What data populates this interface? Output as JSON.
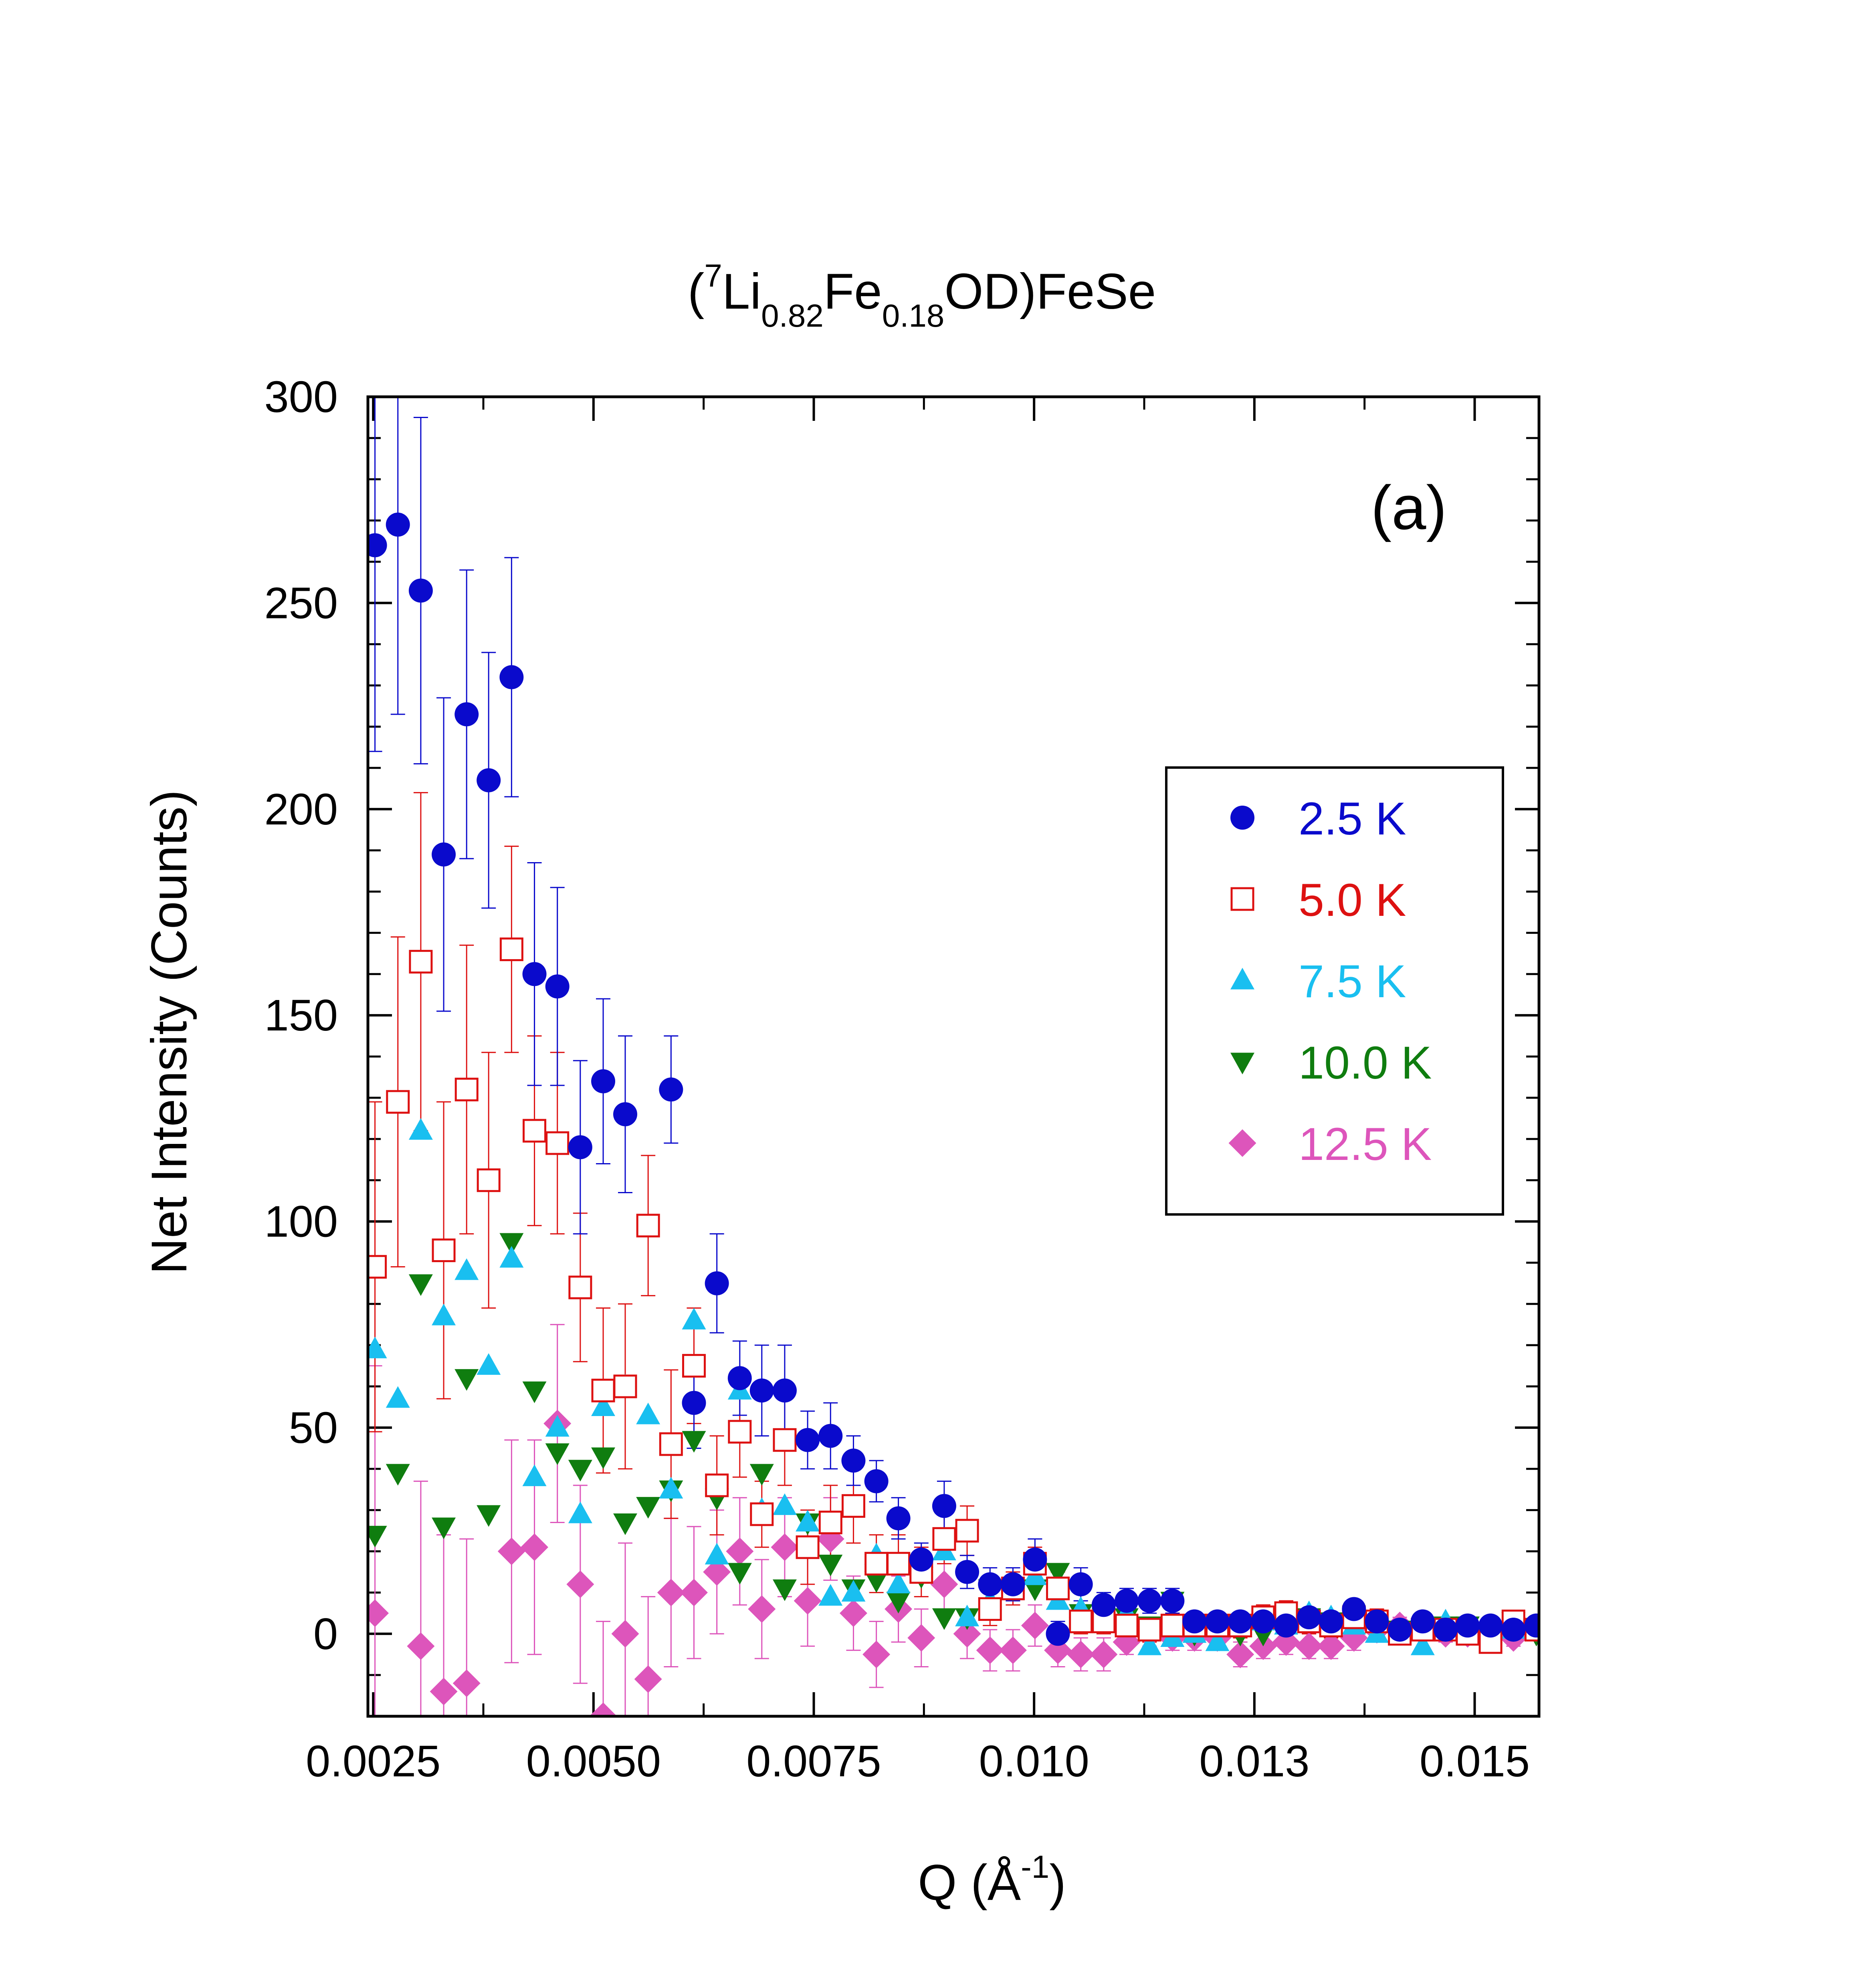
{
  "chart_data": {
    "type": "scatter",
    "title_parts": [
      "(",
      "7",
      "Li",
      "0.82",
      "Fe",
      "0.18",
      "OD)FeSe"
    ],
    "panel_label": "(a)",
    "xlabel_parts": [
      "Q (Å",
      "-1",
      ")"
    ],
    "ylabel": "Net Intensity (Counts)",
    "xlim": [
      0.00244,
      0.01573
    ],
    "ylim": [
      -20,
      300
    ],
    "xticks": [
      0.0025,
      0.005,
      0.0075,
      0.01,
      0.0125,
      0.015
    ],
    "xtick_labels": [
      "0.0025",
      "0.0050",
      "0.0075",
      "0.010",
      "0.013",
      "0.015"
    ],
    "yticks": [
      0,
      50,
      100,
      150,
      200,
      250,
      300
    ],
    "ytick_labels": [
      "0",
      "50",
      "100",
      "150",
      "200",
      "250",
      "300"
    ],
    "legend_position": "right",
    "colors": {
      "2.5 K": "#0a0acc",
      "5.0 K": "#dd1111",
      "7.5 K": "#19bff0",
      "10.0 K": "#0f7d0f",
      "12.5 K": "#dd55bb"
    },
    "x": [
      0.00252,
      0.00278,
      0.00304,
      0.0033,
      0.00356,
      0.00381,
      0.00407,
      0.00433,
      0.00459,
      0.00485,
      0.00511,
      0.00536,
      0.00562,
      0.00588,
      0.00614,
      0.0064,
      0.00666,
      0.00691,
      0.00717,
      0.00743,
      0.00769,
      0.00795,
      0.00821,
      0.00846,
      0.00872,
      0.00898,
      0.00924,
      0.0095,
      0.00976,
      0.01001,
      0.01027,
      0.01053,
      0.01079,
      0.01105,
      0.01131,
      0.01157,
      0.01182,
      0.01208,
      0.01234,
      0.0126,
      0.01286,
      0.01312,
      0.01337,
      0.01363,
      0.01389,
      0.01415,
      0.01441,
      0.01467,
      0.01492,
      0.01518,
      0.01544,
      0.0157
    ],
    "series": [
      {
        "name": "2.5 K",
        "marker": "circle",
        "values": [
          264,
          269,
          253,
          189,
          223,
          207,
          232,
          160,
          157,
          118,
          134,
          126,
          null,
          132,
          56,
          85,
          62,
          59,
          59,
          47,
          48,
          42,
          37,
          28,
          18,
          31,
          15,
          12,
          12,
          18,
          0,
          12,
          7,
          8,
          8,
          8,
          3,
          3,
          3,
          3,
          2,
          4,
          3,
          6,
          3,
          1,
          3,
          1,
          2,
          2,
          1,
          2
        ],
        "errors": [
          50,
          46,
          42,
          38,
          35,
          31,
          29,
          27,
          24,
          21,
          20,
          19,
          null,
          13,
          11,
          12,
          9,
          11,
          11,
          7,
          8,
          6,
          5,
          5,
          4,
          6,
          4,
          4,
          4,
          5,
          3,
          4,
          3,
          3,
          3,
          3,
          2,
          2,
          2,
          2,
          2,
          2,
          2,
          2,
          2,
          2,
          2,
          2,
          2,
          2,
          2,
          2
        ]
      },
      {
        "name": "5.0 K",
        "marker": "square-open",
        "values": [
          89,
          129,
          163,
          93,
          132,
          110,
          166,
          122,
          119,
          84,
          59,
          60,
          99,
          46,
          65,
          36,
          49,
          29,
          47,
          21,
          27,
          31,
          17,
          17,
          15,
          23,
          25,
          6,
          11,
          17,
          11,
          3,
          3,
          2,
          1,
          2,
          2,
          2,
          2,
          4,
          5,
          3,
          2,
          4,
          3,
          0,
          1,
          1,
          0,
          -2,
          3,
          1
        ],
        "errors": [
          40,
          40,
          41,
          36,
          35,
          31,
          25,
          23,
          22,
          18,
          20,
          20,
          17,
          18,
          14,
          12,
          11,
          8,
          11,
          9,
          9,
          9,
          7,
          7,
          6,
          6,
          6,
          4,
          4,
          4,
          4,
          3,
          3,
          3,
          3,
          3,
          3,
          3,
          3,
          3,
          3,
          3,
          3,
          3,
          3,
          2,
          2,
          2,
          2,
          2,
          2,
          2
        ]
      },
      {
        "name": "7.5 K",
        "marker": "triangle-up",
        "values": [
          69,
          57,
          122,
          77,
          88,
          65,
          91,
          38,
          50,
          29,
          55,
          60,
          53,
          35,
          76,
          19,
          59,
          30,
          31,
          27,
          9,
          10,
          19,
          12,
          17,
          20,
          4,
          8,
          12,
          14,
          8,
          6,
          7,
          5,
          -3,
          -1,
          0,
          -2,
          2,
          3,
          2,
          5,
          4,
          2,
          0,
          0,
          -3,
          3,
          0,
          0,
          1,
          1
        ],
        "errors": [
          null,
          null,
          null,
          null,
          null,
          null,
          null,
          null,
          null,
          null,
          null,
          null,
          null,
          null,
          null,
          null,
          null,
          null,
          null,
          null,
          null,
          null,
          null,
          null,
          null,
          null,
          null,
          null,
          null,
          null,
          null,
          null,
          null,
          null,
          null,
          null,
          null,
          null,
          null,
          null,
          null,
          null,
          null,
          null,
          null,
          null,
          null,
          null,
          null,
          null,
          null,
          null
        ]
      },
      {
        "name": "10.0 K",
        "marker": "triangle-down",
        "values": [
          24,
          39,
          85,
          26,
          62,
          29,
          95,
          59,
          44,
          40,
          43,
          27,
          31,
          35,
          47,
          33,
          15,
          39,
          11,
          27,
          17,
          11,
          13,
          8,
          14,
          4,
          4,
          11,
          11,
          11,
          15,
          5,
          4,
          4,
          2,
          8,
          0,
          1,
          0,
          0,
          4,
          4,
          3,
          3,
          1,
          1,
          1,
          2,
          2,
          0,
          3,
          0
        ],
        "errors": [
          null,
          null,
          null,
          null,
          null,
          null,
          null,
          null,
          null,
          null,
          null,
          null,
          null,
          null,
          null,
          null,
          null,
          null,
          null,
          null,
          null,
          null,
          null,
          null,
          null,
          null,
          null,
          null,
          null,
          null,
          null,
          null,
          null,
          null,
          null,
          null,
          null,
          null,
          null,
          null,
          null,
          null,
          null,
          null,
          null,
          null,
          null,
          null,
          null,
          null,
          null,
          null
        ]
      },
      {
        "name": "12.5 K",
        "marker": "diamond",
        "values": [
          5,
          null,
          -3,
          -14,
          -12,
          null,
          20,
          21,
          51,
          12,
          -20,
          0,
          -11,
          10,
          10,
          15,
          20,
          6,
          21,
          8,
          23,
          5,
          -5,
          6,
          -1,
          12,
          0,
          -4,
          -4,
          2,
          -4,
          -5,
          -5,
          -2,
          0,
          -1,
          -1,
          -1,
          -5,
          -3,
          -2,
          -3,
          -3,
          -1,
          1,
          2,
          2,
          0,
          0,
          0,
          -1,
          1
        ],
        "errors": [
          60,
          null,
          40,
          38,
          35,
          null,
          27,
          26,
          24,
          24,
          23,
          22,
          20,
          18,
          16,
          15,
          13,
          12,
          12,
          11,
          10,
          9,
          8,
          8,
          7,
          6,
          6,
          5,
          5,
          5,
          4,
          4,
          4,
          3,
          3,
          3,
          3,
          3,
          3,
          3,
          3,
          3,
          3,
          3,
          2,
          2,
          2,
          2,
          2,
          2,
          2,
          2
        ]
      }
    ]
  }
}
